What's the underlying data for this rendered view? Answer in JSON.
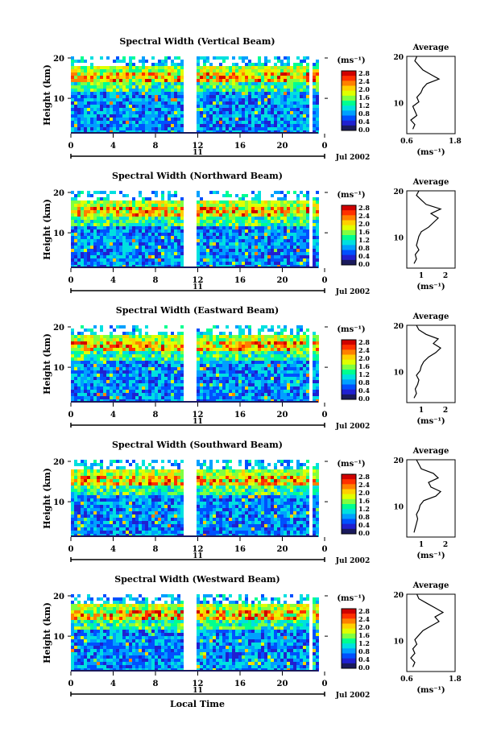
{
  "chart_data": {
    "type": "heatmap",
    "colorbar": {
      "unit_label": "(ms⁻¹)",
      "ticks": [
        "2.8",
        "2.4",
        "2.0",
        "1.6",
        "1.2",
        "0.8",
        "0.4",
        "0.0"
      ],
      "colors": [
        "#1a1a5c",
        "#2020d0",
        "#0050ff",
        "#00a0ff",
        "#00e0e0",
        "#00ff90",
        "#80ff40",
        "#e0ff00",
        "#ffd000",
        "#ff8000",
        "#ff3000",
        "#d00000"
      ]
    },
    "x_axis": {
      "ticks": [
        "0",
        "4",
        "8",
        "12",
        "16",
        "20",
        "0"
      ],
      "day_label": "11",
      "month_label": "Jul 2002",
      "xlabel": "Local Time"
    },
    "y_axis": {
      "ylabel": "Height (km)",
      "ticks": [
        "20",
        "10"
      ],
      "ylim": [
        3,
        20
      ]
    },
    "panels": [
      {
        "title": "Spectral Width (Vertical Beam)",
        "avg_title": "Average",
        "avg_xticks": [
          "0.6",
          "1.8"
        ],
        "avg_xlim": [
          0.6,
          1.8
        ],
        "avg_unit": "(ms⁻¹)",
        "avg_profile": {
          "height": [
            4,
            5,
            6,
            7,
            8,
            9,
            10,
            11,
            12,
            13,
            14,
            15,
            16,
            17,
            18,
            19,
            20
          ],
          "value": [
            0.75,
            0.8,
            0.7,
            0.85,
            0.8,
            0.75,
            0.9,
            0.85,
            0.95,
            1.0,
            1.1,
            1.4,
            1.2,
            1.0,
            0.9,
            0.8,
            0.85
          ]
        }
      },
      {
        "title": "Spectral Width (Northward Beam)",
        "avg_title": "Average",
        "avg_xticks": [
          "1",
          "2"
        ],
        "avg_xlim": [
          0.4,
          2.4
        ],
        "avg_unit": "(ms⁻¹)",
        "avg_profile": {
          "height": [
            4,
            5,
            6,
            7,
            8,
            9,
            10,
            11,
            12,
            13,
            14,
            15,
            16,
            17,
            18,
            19,
            20
          ],
          "value": [
            0.7,
            0.8,
            0.75,
            0.9,
            0.8,
            0.85,
            0.9,
            1.0,
            1.3,
            1.5,
            1.7,
            1.4,
            1.8,
            1.2,
            1.0,
            0.8,
            0.9
          ]
        }
      },
      {
        "title": "Spectral Width (Eastward Beam)",
        "avg_title": "Average",
        "avg_xticks": [
          "1",
          "2"
        ],
        "avg_xlim": [
          0.4,
          2.4
        ],
        "avg_unit": "(ms⁻¹)",
        "avg_profile": {
          "height": [
            4,
            5,
            6,
            7,
            8,
            9,
            10,
            11,
            12,
            13,
            14,
            15,
            16,
            17,
            18,
            19,
            20
          ],
          "value": [
            0.7,
            0.8,
            0.75,
            0.85,
            0.9,
            0.8,
            0.95,
            1.0,
            1.1,
            1.3,
            1.6,
            1.8,
            1.5,
            1.7,
            1.2,
            0.9,
            0.8
          ]
        }
      },
      {
        "title": "Spectral Width (Southward Beam)",
        "avg_title": "Average",
        "avg_xticks": [
          "1",
          "2"
        ],
        "avg_xlim": [
          0.4,
          2.4
        ],
        "avg_unit": "(ms⁻¹)",
        "avg_profile": {
          "height": [
            4,
            5,
            6,
            7,
            8,
            9,
            10,
            11,
            12,
            13,
            14,
            15,
            16,
            17,
            18,
            19,
            20
          ],
          "value": [
            0.7,
            0.75,
            0.8,
            0.85,
            0.8,
            0.9,
            0.95,
            1.1,
            1.6,
            1.8,
            1.4,
            1.3,
            1.7,
            1.5,
            1.0,
            0.9,
            0.8
          ]
        }
      },
      {
        "title": "Spectral Width (Westward Beam)",
        "avg_title": "Average",
        "avg_xticks": [
          "0.6",
          "1.8"
        ],
        "avg_xlim": [
          0.6,
          1.8
        ],
        "avg_unit": "(ms⁻¹)",
        "avg_profile": {
          "height": [
            4,
            5,
            6,
            7,
            8,
            9,
            10,
            11,
            12,
            13,
            14,
            15,
            16,
            17,
            18,
            19,
            20
          ],
          "value": [
            0.75,
            0.8,
            0.7,
            0.8,
            0.75,
            0.85,
            0.8,
            0.9,
            1.0,
            1.2,
            1.4,
            1.3,
            1.5,
            1.3,
            1.1,
            0.9,
            0.85
          ]
        }
      }
    ]
  }
}
